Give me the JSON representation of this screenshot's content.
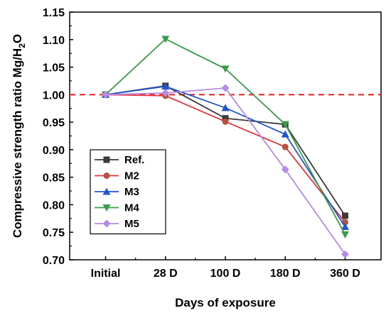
{
  "chart_data": {
    "type": "line",
    "xlabel": "Days of exposure",
    "ylabel_main": "Compressive strength ratio Mg/H",
    "ylabel_sub": "2",
    "ylabel_end": "O",
    "categories": [
      "Initial",
      "28 D",
      "100 D",
      "180 D",
      "360 D"
    ],
    "ylim": [
      0.7,
      1.15
    ],
    "yticks": [
      "0.70",
      "0.75",
      "0.80",
      "0.85",
      "0.90",
      "0.95",
      "1.00",
      "1.05",
      "1.10",
      "1.15"
    ],
    "reference_line": {
      "value": 1.0,
      "color": "#e8191c",
      "style": "dashed"
    },
    "legend_position": "bottom-left",
    "series": [
      {
        "name": "Ref.",
        "color": "#3a3a3a",
        "marker": "square",
        "values": [
          1.0,
          1.016,
          0.957,
          0.946,
          0.78
        ]
      },
      {
        "name": "M2",
        "color": "#e8333a",
        "marker_color": "#b5533c",
        "marker": "circle",
        "values": [
          1.0,
          0.998,
          0.951,
          0.905,
          0.768
        ]
      },
      {
        "name": "M3",
        "color": "#2255cc",
        "marker": "triangle-up",
        "values": [
          1.0,
          1.015,
          0.976,
          0.928,
          0.76
        ]
      },
      {
        "name": "M4",
        "color": "#3c9a4c",
        "marker": "triangle-down",
        "values": [
          1.0,
          1.101,
          1.047,
          0.946,
          0.746
        ]
      },
      {
        "name": "M5",
        "color": "#b48ae6",
        "marker": "diamond",
        "values": [
          1.0,
          1.003,
          1.012,
          0.864,
          0.71
        ]
      }
    ]
  }
}
